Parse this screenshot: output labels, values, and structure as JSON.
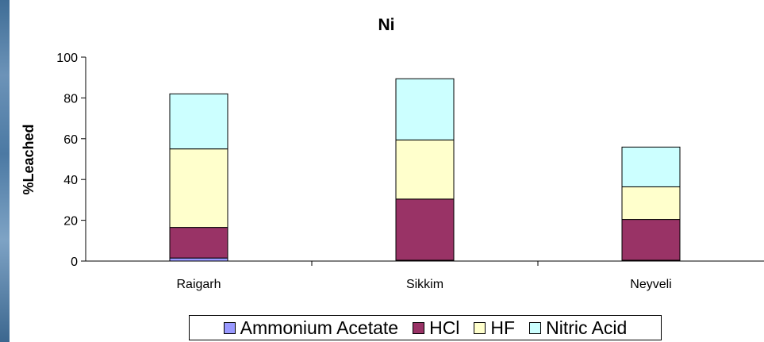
{
  "chart_data": {
    "type": "bar",
    "stacked": true,
    "title": "Ni",
    "xlabel": "",
    "ylabel": "%Leached",
    "ylim": [
      0,
      100
    ],
    "yticks": [
      "0",
      "20",
      "40",
      "60",
      "80",
      "100"
    ],
    "categories": [
      "Raigarh",
      "Sikkim",
      "Neyveli"
    ],
    "series": [
      {
        "name": "Ammonium Acetate",
        "color": "#9999ff",
        "values": [
          1.5,
          0.4,
          0.4
        ]
      },
      {
        "name": "HCl",
        "color": "#993366",
        "values": [
          15,
          30,
          20
        ]
      },
      {
        "name": "HF",
        "color": "#ffffcc",
        "values": [
          38.5,
          29,
          16
        ]
      },
      {
        "name": "Nitric Acid",
        "color": "#ccffff",
        "values": [
          27,
          30,
          19.5
        ]
      }
    ],
    "legend_position": "bottom",
    "grid": false
  },
  "legend": {
    "items": [
      {
        "label": "Ammonium Acetate",
        "color": "#9999ff"
      },
      {
        "label": "HCl",
        "color": "#993366"
      },
      {
        "label": "HF",
        "color": "#ffffcc"
      },
      {
        "label": "Nitric Acid",
        "color": "#ccffff"
      }
    ]
  }
}
